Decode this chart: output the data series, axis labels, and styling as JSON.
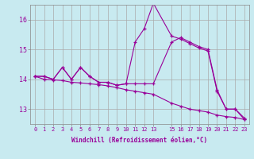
{
  "xlabel": "Windchill (Refroidissement éolien,°C)",
  "background_color": "#c8eaf0",
  "grid_color": "#aaaaaa",
  "line_color": "#990099",
  "x_ticks": [
    0,
    1,
    2,
    3,
    4,
    5,
    6,
    7,
    8,
    9,
    10,
    11,
    12,
    13,
    15,
    16,
    17,
    18,
    19,
    20,
    21,
    22,
    23
  ],
  "ylim": [
    12.5,
    16.5
  ],
  "xlim": [
    -0.5,
    23.5
  ],
  "yticks": [
    13,
    14,
    15,
    16
  ],
  "series": [
    [
      14.1,
      14.1,
      14.0,
      14.4,
      14.0,
      14.4,
      14.1,
      13.9,
      13.9,
      13.8,
      13.85,
      15.25,
      15.7,
      16.55,
      15.45,
      15.35,
      15.2,
      15.05,
      14.95,
      13.6,
      13.0,
      13.0,
      12.65
    ],
    [
      14.1,
      14.1,
      14.0,
      14.4,
      14.0,
      14.4,
      14.1,
      13.9,
      13.9,
      13.8,
      13.85,
      13.85,
      13.85,
      13.85,
      15.25,
      15.4,
      15.25,
      15.1,
      15.0,
      13.65,
      13.0,
      13.0,
      12.7
    ],
    [
      14.1,
      14.0,
      13.98,
      13.96,
      13.9,
      13.88,
      13.85,
      13.82,
      13.78,
      13.72,
      13.65,
      13.6,
      13.55,
      13.5,
      13.2,
      13.1,
      13.0,
      12.95,
      12.9,
      12.8,
      12.75,
      12.72,
      12.65
    ]
  ]
}
